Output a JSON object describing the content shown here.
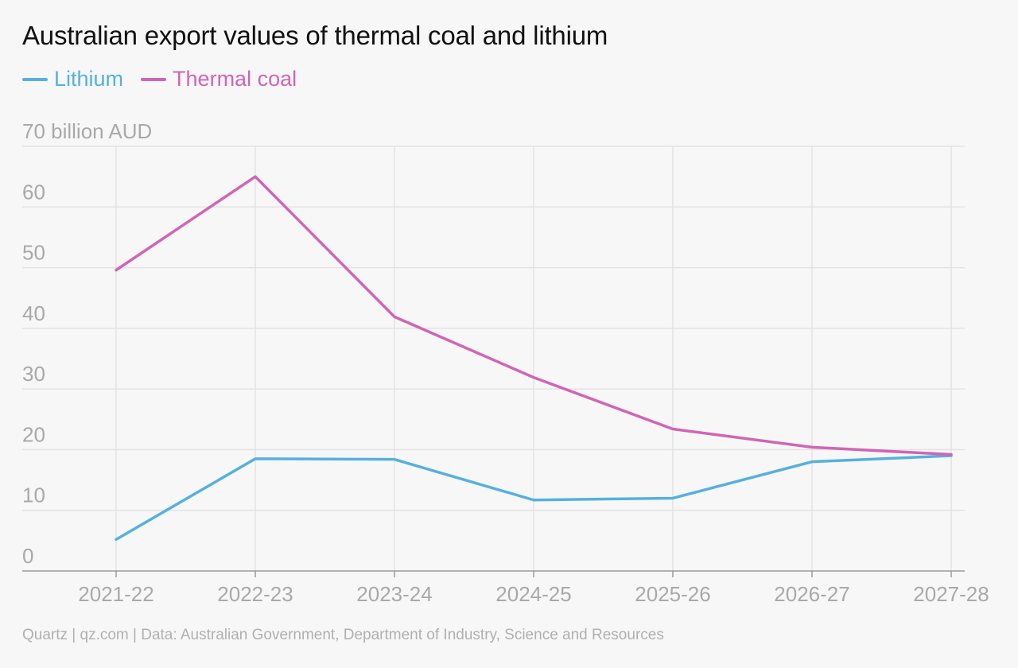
{
  "chart_data": {
    "type": "line",
    "title": "Australian export values of thermal coal and lithium",
    "categories": [
      "2021-22",
      "2022-23",
      "2023-24",
      "2024-25",
      "2025-26",
      "2026-27",
      "2027-28"
    ],
    "ylim": [
      0,
      70
    ],
    "yticks": [
      0,
      10,
      20,
      30,
      40,
      50,
      60,
      70
    ],
    "ytick_labels": [
      "0",
      "10",
      "20",
      "30",
      "40",
      "50",
      "60",
      "70 billion AUD"
    ],
    "grid": true,
    "legend_position": "top-left",
    "series": [
      {
        "name": "Lithium",
        "color": "#55b1de",
        "values": [
          5.2,
          18.5,
          18.4,
          11.7,
          12.0,
          18.0,
          19.0
        ]
      },
      {
        "name": "Thermal coal",
        "color": "#d065b6",
        "values": [
          49.6,
          65.0,
          41.9,
          31.9,
          23.4,
          20.4,
          19.2
        ]
      }
    ]
  },
  "footer": "Quartz | qz.com | Data: Australian Government, Department of Industry, Science and Resources"
}
